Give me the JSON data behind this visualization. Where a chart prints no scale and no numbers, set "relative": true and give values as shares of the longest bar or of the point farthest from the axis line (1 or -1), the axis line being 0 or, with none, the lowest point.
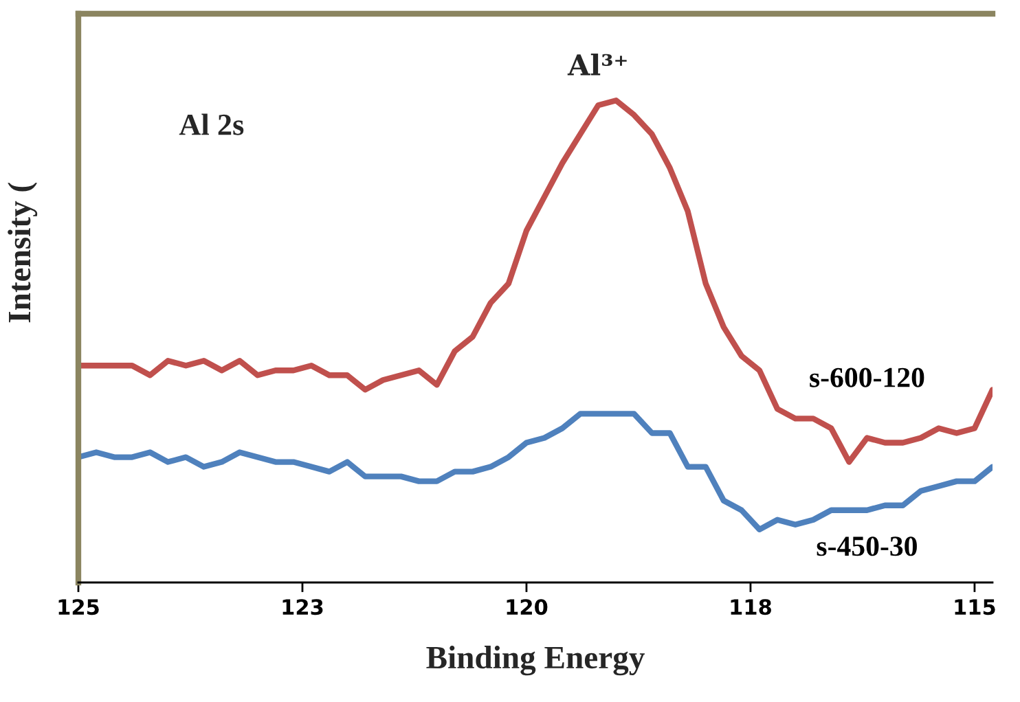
{
  "chart_data": {
    "type": "line",
    "relative": true,
    "xlabel": "Binding Energy",
    "ylabel": "Intensity (",
    "annotations": [
      "Al 2s",
      {
        "text": "Al³⁺",
        "x": 119.2,
        "y": 1
      }
    ],
    "x": [
      125,
      124.8,
      124.6,
      124.4,
      124.2,
      124,
      123.8,
      123.6,
      123.4,
      123.2,
      123,
      122.8,
      122.6,
      122.4,
      122.2,
      122,
      121.8,
      121.6,
      121.4,
      121.2,
      121,
      120.8,
      120.6,
      120.4,
      120.2,
      120,
      119.8,
      119.6,
      119.4,
      119.2,
      119,
      118.8,
      118.6,
      118.4,
      118.2,
      118,
      117.8,
      117.6,
      117.4,
      117.2,
      117,
      116.8,
      116.6,
      116.4,
      116.2,
      116,
      115.8,
      115.6,
      115.4,
      115.2,
      115,
      114.8
    ],
    "series": [
      {
        "name": "s-600-120",
        "color": "#c0504d",
        "values": [
          0.45,
          0.45,
          0.45,
          0.45,
          0.43,
          0.46,
          0.45,
          0.46,
          0.44,
          0.46,
          0.43,
          0.44,
          0.44,
          0.45,
          0.43,
          0.43,
          0.4,
          0.42,
          0.43,
          0.44,
          0.41,
          0.48,
          0.51,
          0.58,
          0.62,
          0.73,
          0.8,
          0.87,
          0.93,
          0.99,
          1,
          0.97,
          0.93,
          0.86,
          0.77,
          0.62,
          0.53,
          0.47,
          0.44,
          0.36,
          0.34,
          0.34,
          0.32,
          0.25,
          0.3,
          0.29,
          0.29,
          0.3,
          0.32,
          0.31,
          0.32,
          0.4
        ]
      },
      {
        "name": "s-450-30",
        "color": "#4f81bd",
        "values": [
          0.26,
          0.27,
          0.26,
          0.26,
          0.27,
          0.25,
          0.26,
          0.24,
          0.25,
          0.27,
          0.26,
          0.25,
          0.25,
          0.24,
          0.23,
          0.25,
          0.22,
          0.22,
          0.22,
          0.21,
          0.21,
          0.23,
          0.23,
          0.24,
          0.26,
          0.29,
          0.3,
          0.32,
          0.35,
          0.35,
          0.35,
          0.35,
          0.31,
          0.31,
          0.24,
          0.24,
          0.17,
          0.15,
          0.11,
          0.13,
          0.12,
          0.13,
          0.15,
          0.15,
          0.15,
          0.16,
          0.16,
          0.19,
          0.2,
          0.21,
          0.21,
          0.24
        ]
      }
    ],
    "xlim": [
      125,
      114.8
    ],
    "xticks": [
      125,
      {
        "value": 122.5,
        "label": "123"
      },
      120,
      {
        "value": 117.5,
        "label": "118"
      },
      115
    ],
    "legend": false,
    "grid": false,
    "marker": "none",
    "line_style": "solid"
  }
}
